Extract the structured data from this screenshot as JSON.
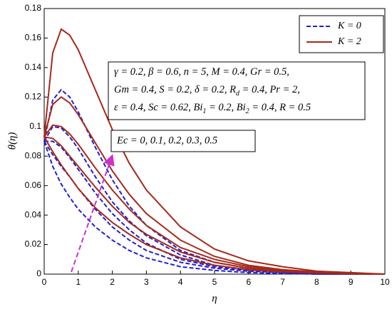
{
  "chart_data": {
    "type": "line",
    "xlabel": "η",
    "ylabel": "θ(η)",
    "x": [
      0,
      0.25,
      0.5,
      0.75,
      1,
      1.5,
      2,
      2.5,
      3,
      4,
      5,
      6,
      7,
      8,
      9,
      10
    ],
    "xlim": [
      0,
      10
    ],
    "xticks": [
      0,
      1,
      2,
      3,
      4,
      5,
      6,
      7,
      8,
      9,
      10
    ],
    "ylim": [
      0,
      0.18
    ],
    "yticks": [
      0,
      0.02,
      0.04,
      0.06,
      0.08,
      0.1,
      0.12,
      0.14,
      0.16,
      0.18
    ],
    "legend": "upper right",
    "series": [
      {
        "name": "K = 0",
        "color": "#1f1fd6",
        "dashed": true,
        "curves": [
          [
            0.09,
            0.073,
            0.061,
            0.052,
            0.044,
            0.032,
            0.023,
            0.016,
            0.011,
            0.005,
            0.0025,
            0.001,
            0.0005,
            0,
            0,
            0
          ],
          [
            0.09,
            0.081,
            0.073,
            0.066,
            0.058,
            0.044,
            0.032,
            0.023,
            0.016,
            0.008,
            0.004,
            0.002,
            0.001,
            0,
            0,
            0
          ],
          [
            0.09,
            0.09,
            0.086,
            0.079,
            0.071,
            0.055,
            0.041,
            0.03,
            0.021,
            0.01,
            0.005,
            0.0025,
            0.001,
            0.0004,
            0,
            0
          ],
          [
            0.09,
            0.1,
            0.099,
            0.093,
            0.085,
            0.066,
            0.049,
            0.036,
            0.026,
            0.013,
            0.006,
            0.003,
            0.0015,
            0.0005,
            0,
            0
          ],
          [
            0.09,
            0.118,
            0.125,
            0.12,
            0.11,
            0.086,
            0.064,
            0.046,
            0.033,
            0.016,
            0.008,
            0.004,
            0.002,
            0.001,
            0,
            0
          ]
        ]
      },
      {
        "name": "K = 2",
        "color": "#a52a1a",
        "dashed": false,
        "curves": [
          [
            0.093,
            0.083,
            0.074,
            0.066,
            0.058,
            0.045,
            0.035,
            0.027,
            0.02,
            0.011,
            0.006,
            0.003,
            0.0015,
            0.0007,
            0.0002,
            0
          ],
          [
            0.093,
            0.092,
            0.087,
            0.08,
            0.073,
            0.059,
            0.046,
            0.035,
            0.027,
            0.015,
            0.008,
            0.004,
            0.002,
            0.001,
            0.0003,
            0
          ],
          [
            0.093,
            0.101,
            0.1,
            0.095,
            0.088,
            0.072,
            0.057,
            0.044,
            0.033,
            0.018,
            0.01,
            0.005,
            0.0025,
            0.001,
            0.0004,
            0
          ],
          [
            0.093,
            0.115,
            0.12,
            0.116,
            0.108,
            0.089,
            0.07,
            0.054,
            0.041,
            0.023,
            0.012,
            0.006,
            0.003,
            0.0015,
            0.0005,
            0
          ],
          [
            0.093,
            0.15,
            0.166,
            0.162,
            0.152,
            0.125,
            0.098,
            0.075,
            0.057,
            0.032,
            0.017,
            0.009,
            0.005,
            0.002,
            0.001,
            0
          ]
        ]
      }
    ],
    "parameters": [
      [
        "γ = 0.2, β = 0.6, n = 5, M = 0.4, Gr = 0.5,"
      ],
      [
        "Gm = 0.4, S = 0.2, δ = 0.2, R",
        {
          "sub": "d"
        },
        " = 0.4, Pr = 2,"
      ],
      [
        "ε = 0.4, Sc = 0.62, Bi",
        {
          "sub": "1"
        },
        " = 0.2, Bi",
        {
          "sub": "2"
        },
        " = 0.4, R = 0.5"
      ]
    ],
    "arrow_label": "Ec = 0, 0.1, 0.2, 0.3, 0.5"
  }
}
